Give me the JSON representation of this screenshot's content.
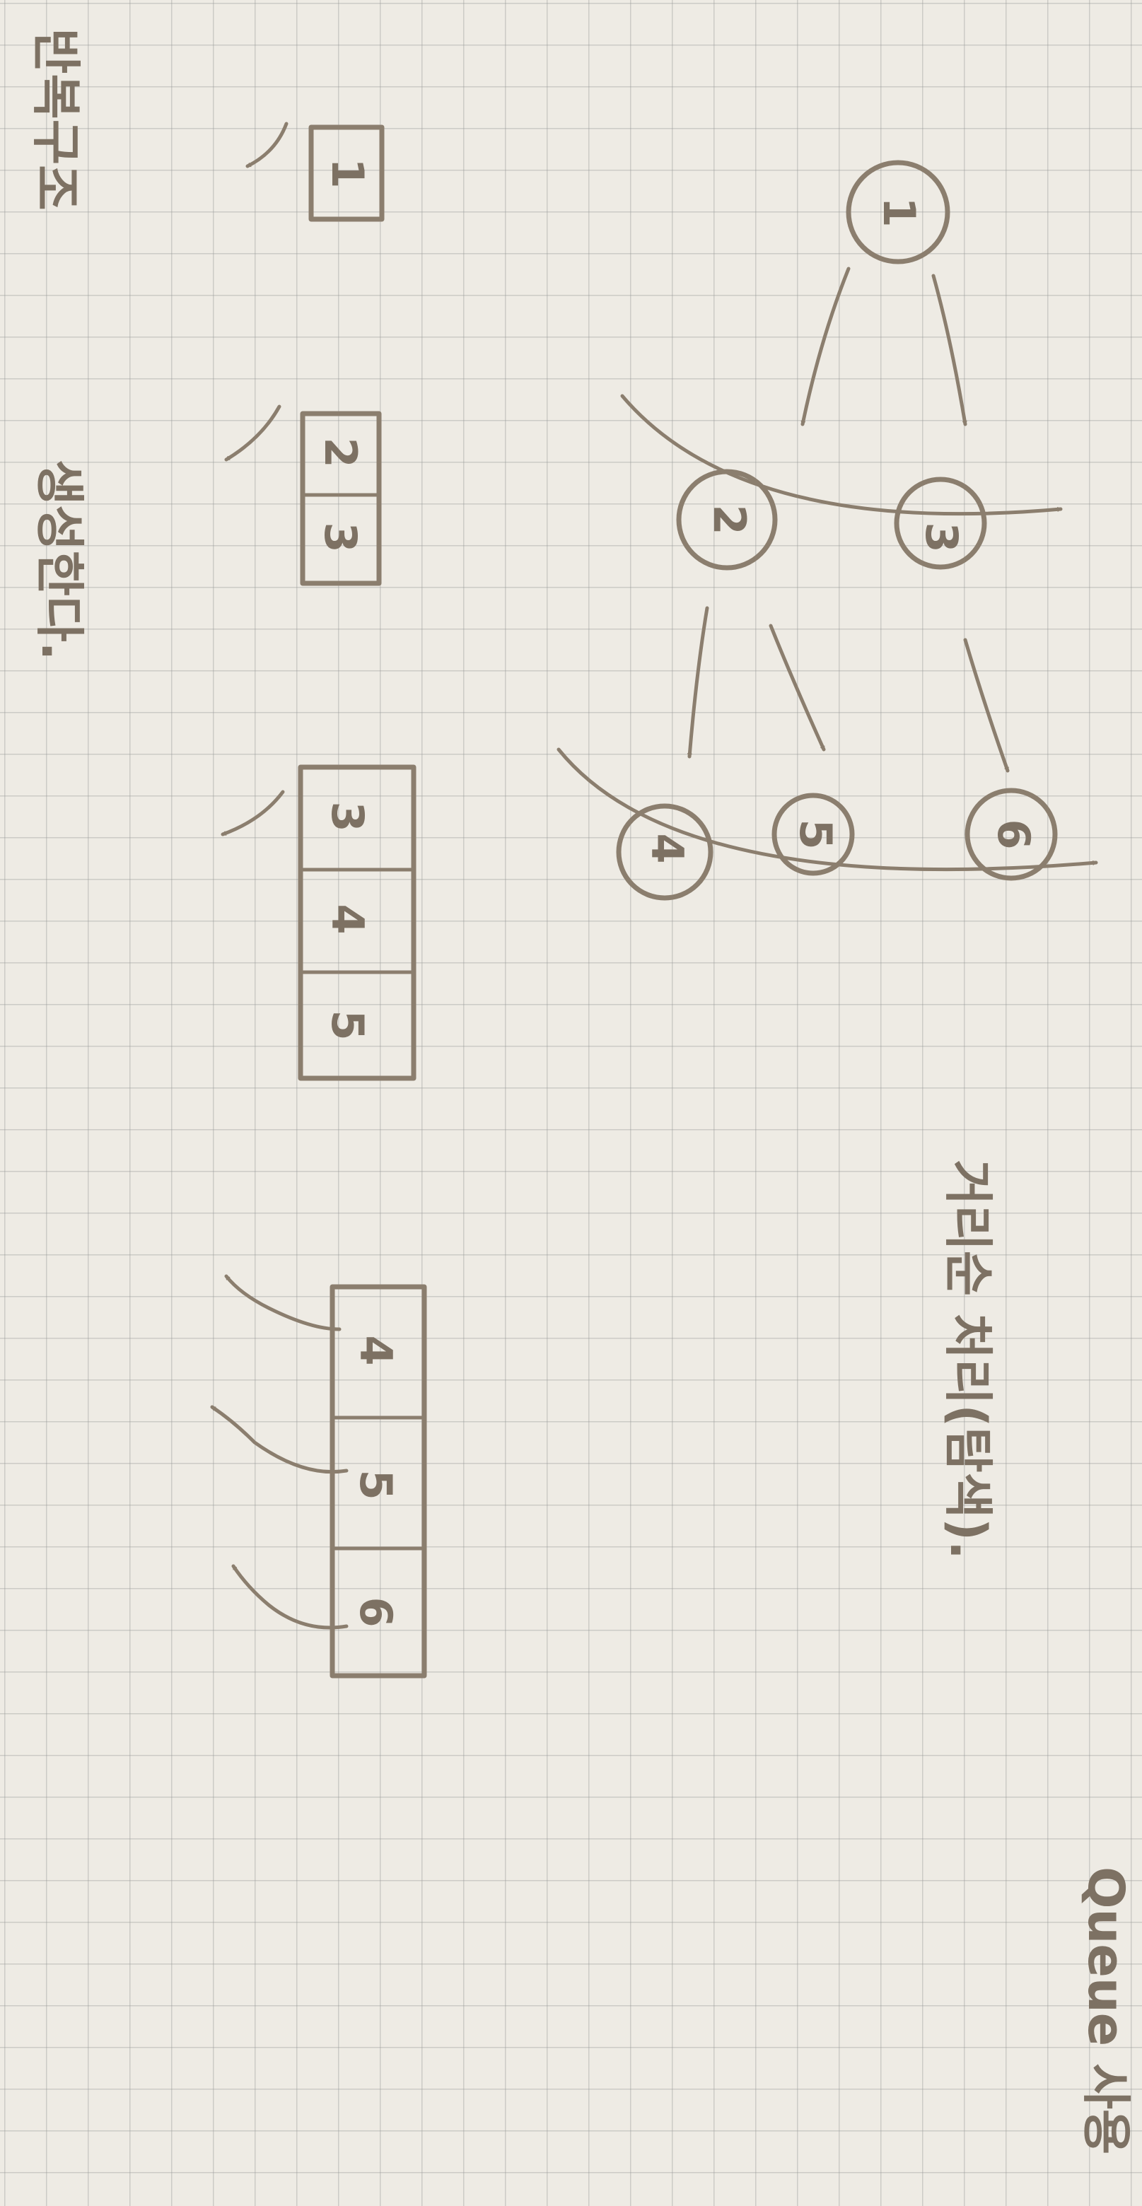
{
  "graph": {
    "nodes": [
      "1",
      "2",
      "3",
      "4",
      "5",
      "6"
    ],
    "edges": [
      [
        "1",
        "2"
      ],
      [
        "1",
        "3"
      ],
      [
        "2",
        "4"
      ],
      [
        "2",
        "5"
      ],
      [
        "3",
        "6"
      ]
    ]
  },
  "queue_steps": [
    [
      "1"
    ],
    [
      "2",
      "3"
    ],
    [
      "3",
      "4",
      "5"
    ],
    [
      "4",
      "5",
      "6"
    ]
  ],
  "notes": {
    "traversal": "거리순 처리(탐색).",
    "queue_use": "Queue 사용",
    "repeat": "반복구조",
    "generate": "생성한다."
  }
}
